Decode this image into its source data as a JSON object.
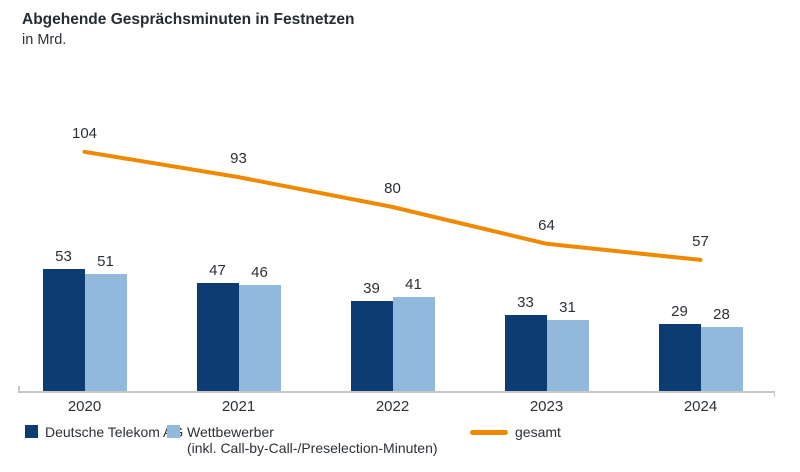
{
  "title": "Abgehende Gesprächsminuten in Festnetzen",
  "subtitle": "in Mrd.",
  "colors": {
    "telekom_bar": "#0d3c73",
    "wettbewerber_bar": "#92b9dc",
    "gesamt_line": "#ef8a00",
    "text": "#2b3137",
    "axis": "#c7c7c7"
  },
  "legend": [
    {
      "label": "Deutsche Telekom AG",
      "sublabel": "",
      "marker": "square",
      "color": "#0d3c73"
    },
    {
      "label": "Wettbewerber",
      "sublabel": "(inkl. Call-by-Call-/Preselection-Minuten)",
      "marker": "square",
      "color": "#92b9dc"
    },
    {
      "label": "gesamt",
      "sublabel": "",
      "marker": "line",
      "color": "#ef8a00"
    }
  ],
  "chart_data": {
    "type": "bar",
    "title": "Abgehende Gesprächsminuten in Festnetzen",
    "ylabel": "in Mrd.",
    "categories": [
      "2020",
      "2021",
      "2022",
      "2023",
      "2024"
    ],
    "series": [
      {
        "name": "Deutsche Telekom AG",
        "type": "bar",
        "color": "#0d3c73",
        "values": [
          53,
          47,
          39,
          33,
          29
        ]
      },
      {
        "name": "Wettbewerber (inkl. Call-by-Call-/Preselection-Minuten)",
        "type": "bar",
        "color": "#92b9dc",
        "values": [
          51,
          46,
          41,
          31,
          28
        ]
      },
      {
        "name": "gesamt",
        "type": "line",
        "color": "#ef8a00",
        "values": [
          104,
          93,
          80,
          64,
          57
        ]
      }
    ],
    "ylim": [
      0,
      115
    ],
    "grid": false,
    "legend_position": "bottom",
    "data_labels": true
  }
}
